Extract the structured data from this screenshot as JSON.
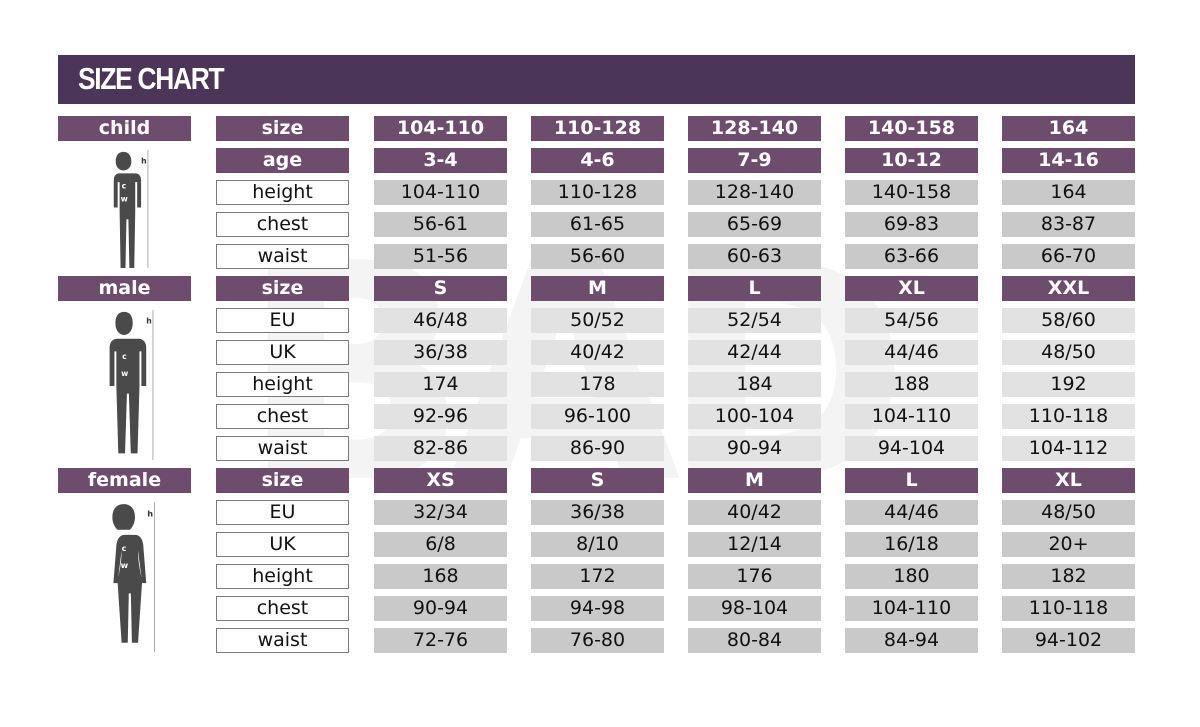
{
  "title": "SIZE CHART",
  "watermark": "BAD",
  "colors": {
    "banner": "#4b3558",
    "header": "#6d4c6e",
    "cell_dark": "#c9c9c9",
    "cell_light": "#e2e2e2"
  },
  "sections": [
    {
      "name": "child",
      "figure_icon": "child-silhouette-icon",
      "figure_labels": {
        "h": "h",
        "c": "c",
        "w": "w"
      },
      "header_label": "size",
      "header_values": [
        "104-110",
        "110-128",
        "128-140",
        "140-158",
        "164"
      ],
      "shade": "dark",
      "rows": [
        {
          "label": "age",
          "values": [
            "3-4",
            "4-6",
            "7-9",
            "10-12",
            "14-16"
          ],
          "is_header": true
        },
        {
          "label": "height",
          "values": [
            "104-110",
            "110-128",
            "128-140",
            "140-158",
            "164"
          ]
        },
        {
          "label": "chest",
          "values": [
            "56-61",
            "61-65",
            "65-69",
            "69-83",
            "83-87"
          ]
        },
        {
          "label": "waist",
          "values": [
            "51-56",
            "56-60",
            "60-63",
            "63-66",
            "66-70"
          ]
        }
      ]
    },
    {
      "name": "male",
      "figure_icon": "male-silhouette-icon",
      "figure_labels": {
        "h": "h",
        "c": "c",
        "w": "w"
      },
      "header_label": "size",
      "header_values": [
        "S",
        "M",
        "L",
        "XL",
        "XXL"
      ],
      "shade": "light",
      "rows": [
        {
          "label": "EU",
          "values": [
            "46/48",
            "50/52",
            "52/54",
            "54/56",
            "58/60"
          ]
        },
        {
          "label": "UK",
          "values": [
            "36/38",
            "40/42",
            "42/44",
            "44/46",
            "48/50"
          ]
        },
        {
          "label": "height",
          "values": [
            "174",
            "178",
            "184",
            "188",
            "192"
          ]
        },
        {
          "label": "chest",
          "values": [
            "92-96",
            "96-100",
            "100-104",
            "104-110",
            "110-118"
          ]
        },
        {
          "label": "waist",
          "values": [
            "82-86",
            "86-90",
            "90-94",
            "94-104",
            "104-112"
          ]
        }
      ]
    },
    {
      "name": "female",
      "figure_icon": "female-silhouette-icon",
      "figure_labels": {
        "h": "h",
        "c": "c",
        "w": "w"
      },
      "header_label": "size",
      "header_values": [
        "XS",
        "S",
        "M",
        "L",
        "XL"
      ],
      "shade": "dark",
      "rows": [
        {
          "label": "EU",
          "values": [
            "32/34",
            "36/38",
            "40/42",
            "44/46",
            "48/50"
          ]
        },
        {
          "label": "UK",
          "values": [
            "6/8",
            "8/10",
            "12/14",
            "16/18",
            "20+"
          ]
        },
        {
          "label": "height",
          "values": [
            "168",
            "172",
            "176",
            "180",
            "182"
          ]
        },
        {
          "label": "chest",
          "values": [
            "90-94",
            "94-98",
            "98-104",
            "104-110",
            "110-118"
          ]
        },
        {
          "label": "waist",
          "values": [
            "72-76",
            "76-80",
            "80-84",
            "84-94",
            "94-102"
          ]
        }
      ]
    }
  ]
}
